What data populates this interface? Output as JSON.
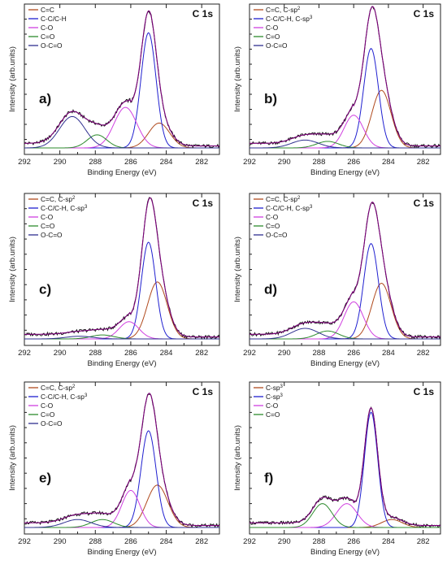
{
  "colors": {
    "envelope": "#7a0078",
    "raw": "#111111",
    "cc": "#b04a1e",
    "cc_sp2": "#b04a1e",
    "ch": "#2020d0",
    "co": "#d040e0",
    "c_eq_o": "#2e8b2e",
    "occo": "#303090"
  },
  "chart_data": [
    {
      "panel": "a)",
      "type": "line",
      "title": "C 1s",
      "xlabel": "Binding Energy (eV)",
      "ylabel": "Intensity (arb.units)",
      "xlim": [
        292,
        281
      ],
      "x_reversed": true,
      "xticks": [
        "292",
        "290",
        "288",
        "286",
        "284",
        "282"
      ],
      "legend_position": "top-left",
      "legend": [
        {
          "text": "C=C",
          "sup": "",
          "color": "#b04a1e"
        },
        {
          "text": "C-C/C-H",
          "sup": "",
          "color": "#2020d0"
        },
        {
          "text": "C-O",
          "sup": "",
          "color": "#d040e0"
        },
        {
          "text": "C=O",
          "sup": "",
          "color": "#2e8b2e"
        },
        {
          "text": "O-C=O",
          "sup": "",
          "color": "#303090"
        }
      ],
      "series": [
        {
          "center": 284.4,
          "height": 0.19,
          "fwhm": 1.4,
          "color": "#b04a1e"
        },
        {
          "center": 285.0,
          "height": 0.88,
          "fwhm": 1.0,
          "color": "#2020d0"
        },
        {
          "center": 286.3,
          "height": 0.31,
          "fwhm": 1.5,
          "color": "#d040e0"
        },
        {
          "center": 287.9,
          "height": 0.1,
          "fwhm": 1.3,
          "color": "#2e8b2e"
        },
        {
          "center": 289.3,
          "height": 0.24,
          "fwhm": 1.7,
          "color": "#303090"
        }
      ]
    },
    {
      "panel": "b)",
      "type": "line",
      "title": "C 1s",
      "xlabel": "Binding Energy (eV)",
      "ylabel": "Intensity (arb.units)",
      "xlim": [
        292,
        281
      ],
      "x_reversed": true,
      "xticks": [
        "292",
        "290",
        "288",
        "286",
        "284",
        "282"
      ],
      "legend_position": "top-left",
      "legend": [
        {
          "text": "C=C, C-sp",
          "sup": "2",
          "color": "#b04a1e"
        },
        {
          "text": "C-C/C-H, C-sp",
          "sup": "3",
          "color": "#2020d0"
        },
        {
          "text": "C-O",
          "sup": "",
          "color": "#d040e0"
        },
        {
          "text": "C=O",
          "sup": "",
          "color": "#2e8b2e"
        },
        {
          "text": "O-C=O",
          "sup": "",
          "color": "#303090"
        }
      ],
      "series": [
        {
          "center": 284.4,
          "height": 0.44,
          "fwhm": 1.3,
          "color": "#b04a1e"
        },
        {
          "center": 285.0,
          "height": 0.76,
          "fwhm": 1.0,
          "color": "#2020d0"
        },
        {
          "center": 286.0,
          "height": 0.25,
          "fwhm": 1.3,
          "color": "#d040e0"
        },
        {
          "center": 287.5,
          "height": 0.05,
          "fwhm": 1.5,
          "color": "#2e8b2e"
        },
        {
          "center": 288.8,
          "height": 0.06,
          "fwhm": 1.8,
          "color": "#303090"
        }
      ]
    },
    {
      "panel": "c)",
      "type": "line",
      "title": "C 1s",
      "xlabel": "Binding Energy (eV)",
      "ylabel": "Intensity (arb.units)",
      "xlim": [
        292,
        281
      ],
      "x_reversed": true,
      "xticks": [
        "292",
        "290",
        "288",
        "286",
        "284",
        "282"
      ],
      "legend_position": "top-left",
      "legend": [
        {
          "text": "C=C, C-sp",
          "sup": "2",
          "color": "#b04a1e"
        },
        {
          "text": "C-C/C-H, C-sp",
          "sup": "3",
          "color": "#2020d0"
        },
        {
          "text": "C-O",
          "sup": "",
          "color": "#d040e0"
        },
        {
          "text": "C=O",
          "sup": "",
          "color": "#2e8b2e"
        },
        {
          "text": "O-C=O",
          "sup": "",
          "color": "#303090"
        }
      ],
      "series": [
        {
          "center": 284.5,
          "height": 0.43,
          "fwhm": 1.3,
          "color": "#b04a1e"
        },
        {
          "center": 285.0,
          "height": 0.73,
          "fwhm": 0.95,
          "color": "#2020d0"
        },
        {
          "center": 286.1,
          "height": 0.13,
          "fwhm": 1.3,
          "color": "#d040e0"
        },
        {
          "center": 287.6,
          "height": 0.03,
          "fwhm": 1.5,
          "color": "#2e8b2e"
        },
        {
          "center": 288.9,
          "height": 0.02,
          "fwhm": 1.8,
          "color": "#303090"
        }
      ]
    },
    {
      "panel": "d)",
      "type": "line",
      "title": "C 1s",
      "xlabel": "Binding Energy (eV)",
      "ylabel": "Intensity (arb.units)",
      "xlim": [
        292,
        281
      ],
      "x_reversed": true,
      "xticks": [
        "292",
        "290",
        "288",
        "286",
        "284",
        "282"
      ],
      "legend_position": "top-left",
      "legend": [
        {
          "text": "C=C, C-sp",
          "sup": "2",
          "color": "#b04a1e"
        },
        {
          "text": "C-C/C-H, C-sp",
          "sup": "3",
          "color": "#2020d0"
        },
        {
          "text": "C-O",
          "sup": "",
          "color": "#d040e0"
        },
        {
          "text": "C=O",
          "sup": "",
          "color": "#2e8b2e"
        },
        {
          "text": "O-C=O",
          "sup": "",
          "color": "#303090"
        }
      ],
      "series": [
        {
          "center": 284.4,
          "height": 0.42,
          "fwhm": 1.3,
          "color": "#b04a1e"
        },
        {
          "center": 285.0,
          "height": 0.72,
          "fwhm": 1.0,
          "color": "#2020d0"
        },
        {
          "center": 286.0,
          "height": 0.28,
          "fwhm": 1.3,
          "color": "#d040e0"
        },
        {
          "center": 287.5,
          "height": 0.06,
          "fwhm": 1.5,
          "color": "#2e8b2e"
        },
        {
          "center": 288.8,
          "height": 0.08,
          "fwhm": 1.8,
          "color": "#303090"
        }
      ]
    },
    {
      "panel": "e)",
      "type": "line",
      "title": "C 1s",
      "xlabel": "Binding Energy (eV)",
      "ylabel": "Intensity (arb.units)",
      "xlim": [
        292,
        281
      ],
      "x_reversed": true,
      "xticks": [
        "292",
        "290",
        "288",
        "286",
        "284",
        "282"
      ],
      "legend_position": "top-left",
      "legend": [
        {
          "text": "C=C, C-sp",
          "sup": "2",
          "color": "#b04a1e"
        },
        {
          "text": "C-C/C-H, C-sp",
          "sup": "3",
          "color": "#2020d0"
        },
        {
          "text": "C-O",
          "sup": "",
          "color": "#d040e0"
        },
        {
          "text": "C=O",
          "sup": "",
          "color": "#2e8b2e"
        },
        {
          "text": "O-C=O",
          "sup": "",
          "color": "#303090"
        }
      ],
      "series": [
        {
          "center": 284.5,
          "height": 0.32,
          "fwhm": 1.4,
          "color": "#b04a1e"
        },
        {
          "center": 285.0,
          "height": 0.73,
          "fwhm": 1.0,
          "color": "#2020d0"
        },
        {
          "center": 286.0,
          "height": 0.28,
          "fwhm": 1.2,
          "color": "#d040e0"
        },
        {
          "center": 287.6,
          "height": 0.06,
          "fwhm": 1.5,
          "color": "#2e8b2e"
        },
        {
          "center": 289.0,
          "height": 0.06,
          "fwhm": 1.8,
          "color": "#303090"
        }
      ]
    },
    {
      "panel": "f)",
      "type": "line",
      "title": "C 1s",
      "xlabel": "Binding Energy (eV)",
      "ylabel": "Intensity (arb.units)",
      "xlim": [
        292,
        281
      ],
      "x_reversed": true,
      "xticks": [
        "292",
        "290",
        "288",
        "286",
        "284",
        "282"
      ],
      "legend_position": "top-left",
      "legend": [
        {
          "text": "C-sp",
          "sup": "3",
          "color": "#b04a1e"
        },
        {
          "text": "C-sp",
          "sup": "3",
          "color": "#2020d0"
        },
        {
          "text": "C-O",
          "sup": "",
          "color": "#d040e0"
        },
        {
          "text": "C=O",
          "sup": "",
          "color": "#2e8b2e"
        }
      ],
      "series": [
        {
          "center": 283.8,
          "height": 0.06,
          "fwhm": 1.4,
          "color": "#b04a1e"
        },
        {
          "center": 285.0,
          "height": 0.87,
          "fwhm": 0.9,
          "color": "#2020d0"
        },
        {
          "center": 286.4,
          "height": 0.18,
          "fwhm": 1.4,
          "color": "#d040e0"
        },
        {
          "center": 287.8,
          "height": 0.18,
          "fwhm": 1.3,
          "color": "#2e8b2e"
        }
      ]
    }
  ]
}
